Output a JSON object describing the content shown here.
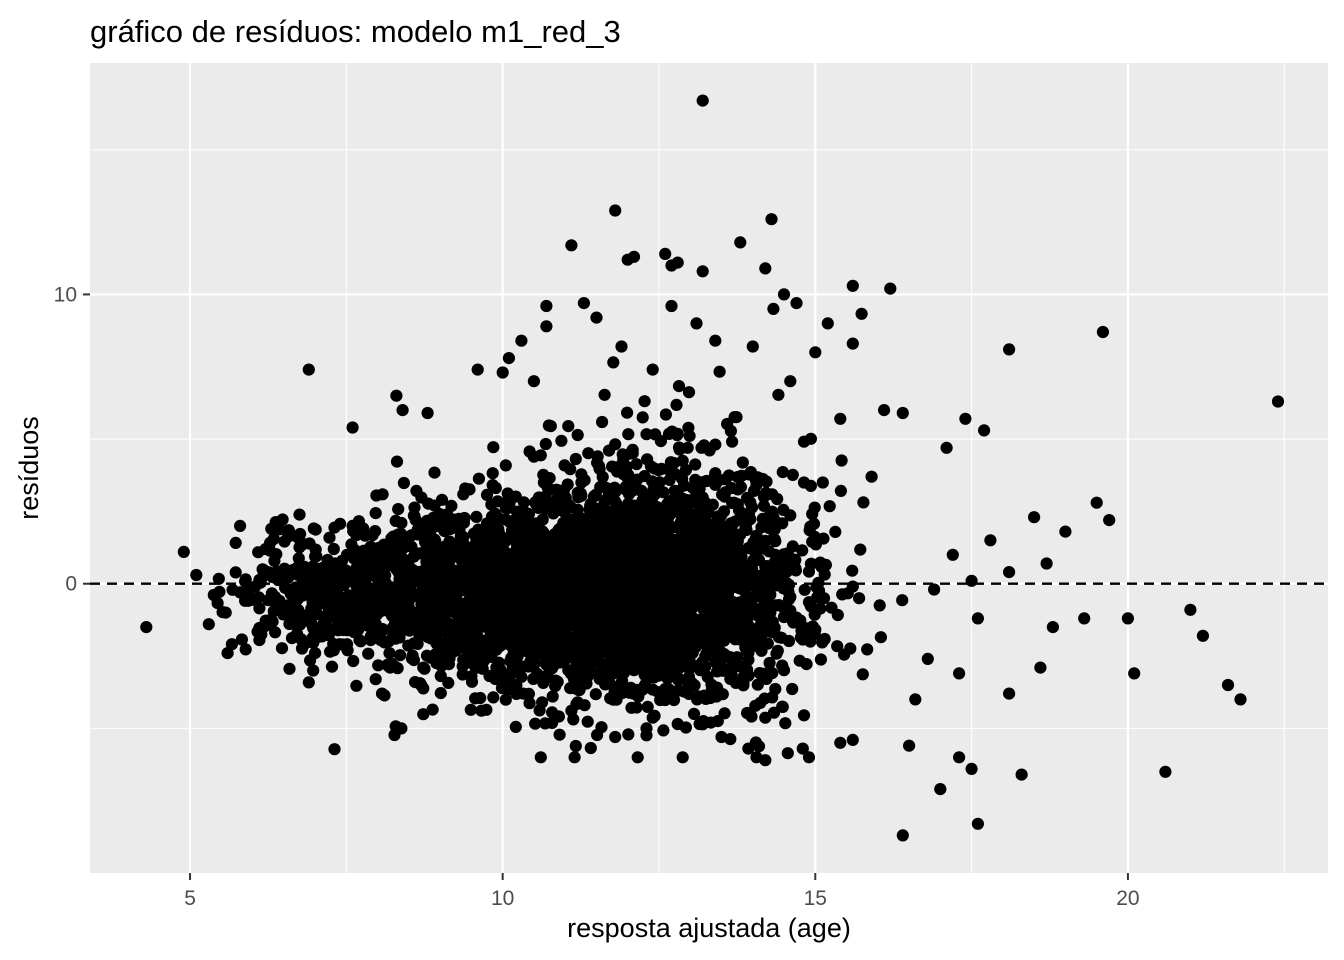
{
  "chart_data": {
    "type": "scatter",
    "title": "gráfico de resíduos: modelo m1_red_3",
    "xlabel": "resposta ajustada (age)",
    "ylabel": "resíduos",
    "xlim": [
      3.4,
      23.2
    ],
    "ylim": [
      -10.0,
      18.0
    ],
    "x_ticks": [
      5,
      10,
      15,
      20
    ],
    "y_ticks": [
      0,
      10
    ],
    "x_tick_labels": [
      "5",
      "10",
      "15",
      "20"
    ],
    "y_tick_labels": [
      "0",
      "10"
    ],
    "reference_line": {
      "y": 0,
      "style": "dashed",
      "color": "#000000"
    },
    "colors": {
      "panel": "#ebebeb",
      "grid": "#ffffff",
      "point": "#000000",
      "tick": "#4d4d4d"
    },
    "grid": true,
    "legend": "none",
    "n_points": 4177,
    "points": [
      [
        4.3,
        -1.5
      ],
      [
        4.9,
        1.1
      ],
      [
        5.1,
        0.3
      ],
      [
        5.3,
        -1.4
      ],
      [
        5.6,
        -2.4
      ],
      [
        5.8,
        2.0
      ],
      [
        6.3,
        1.9
      ],
      [
        6.9,
        7.4
      ],
      [
        7.0,
        -2.4
      ],
      [
        7.3,
        -2.3
      ],
      [
        7.6,
        5.4
      ],
      [
        7.6,
        2.0
      ],
      [
        7.9,
        0.9
      ],
      [
        8.2,
        -2.9
      ],
      [
        8.3,
        6.5
      ],
      [
        8.4,
        6.0
      ],
      [
        8.6,
        -3.4
      ],
      [
        8.8,
        5.9
      ],
      [
        9.0,
        -2.7
      ],
      [
        9.6,
        7.4
      ],
      [
        9.5,
        -3.2
      ],
      [
        9.9,
        -2.9
      ],
      [
        10.0,
        7.3
      ],
      [
        10.1,
        7.8
      ],
      [
        10.3,
        8.4
      ],
      [
        10.5,
        7.0
      ],
      [
        10.7,
        9.6
      ],
      [
        10.7,
        8.9
      ],
      [
        11.1,
        11.7
      ],
      [
        10.8,
        -3.9
      ],
      [
        11.2,
        -4.1
      ],
      [
        11.3,
        9.7
      ],
      [
        11.5,
        9.2
      ],
      [
        11.8,
        12.9
      ],
      [
        11.9,
        8.2
      ],
      [
        12.0,
        11.2
      ],
      [
        12.1,
        11.3
      ],
      [
        11.8,
        -5.3
      ],
      [
        12.3,
        -5.0
      ],
      [
        12.4,
        7.4
      ],
      [
        12.6,
        11.4
      ],
      [
        12.7,
        11.0
      ],
      [
        12.8,
        11.1
      ],
      [
        12.7,
        9.6
      ],
      [
        13.2,
        16.7
      ],
      [
        13.2,
        10.8
      ],
      [
        13.1,
        9.0
      ],
      [
        13.5,
        -5.3
      ],
      [
        13.8,
        11.8
      ],
      [
        13.4,
        8.4
      ],
      [
        14.0,
        8.2
      ],
      [
        14.2,
        -6.1
      ],
      [
        14.3,
        12.6
      ],
      [
        14.2,
        10.9
      ],
      [
        14.5,
        10.0
      ],
      [
        14.6,
        7.0
      ],
      [
        14.7,
        9.7
      ],
      [
        14.8,
        -5.7
      ],
      [
        15.0,
        8.0
      ],
      [
        15.2,
        9.0
      ],
      [
        15.4,
        -5.5
      ],
      [
        15.6,
        10.3
      ],
      [
        15.6,
        8.3
      ],
      [
        15.4,
        5.7
      ],
      [
        15.6,
        -5.4
      ],
      [
        16.2,
        10.2
      ],
      [
        16.1,
        6.0
      ],
      [
        15.9,
        3.7
      ],
      [
        16.4,
        5.9
      ],
      [
        16.4,
        -8.7
      ],
      [
        16.5,
        -5.6
      ],
      [
        16.6,
        -4.0
      ],
      [
        16.8,
        -2.6
      ],
      [
        16.9,
        -0.2
      ],
      [
        17.0,
        -7.1
      ],
      [
        17.1,
        4.7
      ],
      [
        17.2,
        1.0
      ],
      [
        17.3,
        -3.1
      ],
      [
        17.3,
        -6.0
      ],
      [
        17.4,
        5.7
      ],
      [
        17.5,
        -6.4
      ],
      [
        17.5,
        0.1
      ],
      [
        17.6,
        -8.3
      ],
      [
        17.7,
        5.3
      ],
      [
        17.8,
        1.5
      ],
      [
        17.6,
        -1.2
      ],
      [
        18.1,
        8.1
      ],
      [
        18.1,
        0.4
      ],
      [
        18.1,
        -3.8
      ],
      [
        18.3,
        -6.6
      ],
      [
        18.5,
        2.3
      ],
      [
        18.6,
        -2.9
      ],
      [
        18.7,
        0.7
      ],
      [
        18.8,
        -1.5
      ],
      [
        19.0,
        1.8
      ],
      [
        19.3,
        -1.2
      ],
      [
        19.5,
        2.8
      ],
      [
        19.6,
        8.7
      ],
      [
        19.7,
        2.2
      ],
      [
        20.0,
        -1.2
      ],
      [
        20.1,
        -3.1
      ],
      [
        20.6,
        -6.5
      ],
      [
        21.0,
        -0.9
      ],
      [
        21.2,
        -1.8
      ],
      [
        21.6,
        -3.5
      ],
      [
        21.8,
        -4.0
      ],
      [
        22.4,
        6.3
      ]
    ],
    "clusters": [
      {
        "cx": 11.5,
        "cy": -0.3,
        "sx": 1.55,
        "sy": 1.55,
        "n": 1700
      },
      {
        "cx": 12.3,
        "cy": 0.0,
        "sx": 1.15,
        "sy": 2.3,
        "n": 1150
      },
      {
        "cx": 9.3,
        "cy": -0.3,
        "sx": 1.2,
        "sy": 1.4,
        "n": 750
      },
      {
        "cx": 7.2,
        "cy": -0.4,
        "sx": 0.85,
        "sy": 0.95,
        "n": 300
      },
      {
        "cx": 13.5,
        "cy": 0.5,
        "sx": 1.0,
        "sy": 3.0,
        "n": 180
      }
    ]
  }
}
